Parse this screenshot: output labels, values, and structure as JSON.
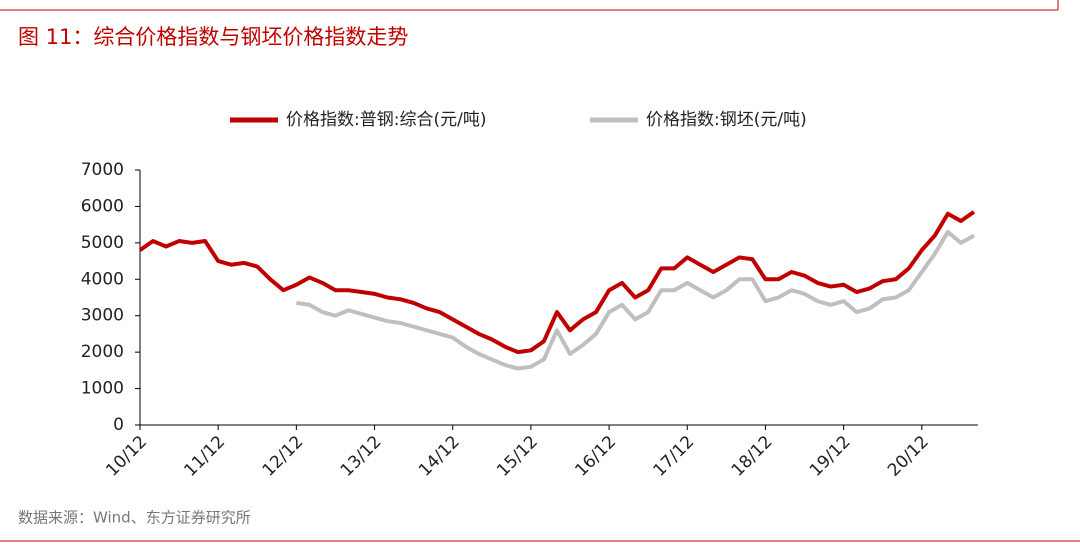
{
  "title": "图 11：综合价格指数与钢坯价格指数走势",
  "source": "数据来源：Wind、东方证券研究所",
  "chart_data": {
    "type": "line",
    "categories": [
      "10/12",
      null,
      null,
      null,
      null,
      null,
      "11/12",
      null,
      null,
      null,
      null,
      null,
      "12/12",
      null,
      null,
      null,
      null,
      null,
      "13/12",
      null,
      null,
      null,
      null,
      null,
      "14/12",
      null,
      null,
      null,
      null,
      null,
      "15/12",
      null,
      null,
      null,
      null,
      null,
      "16/12",
      null,
      null,
      null,
      null,
      null,
      "17/12",
      null,
      null,
      null,
      null,
      null,
      "18/12",
      null,
      null,
      null,
      null,
      null,
      "19/12",
      null,
      null,
      null,
      null,
      null,
      "20/12",
      null,
      null,
      null,
      null
    ],
    "series": [
      {
        "name": "价格指数:普钢:综合(元/吨)",
        "color": "#c00000",
        "values": [
          4800,
          5050,
          4900,
          5050,
          5000,
          5050,
          4500,
          4400,
          4450,
          4350,
          4000,
          3700,
          3850,
          4050,
          3900,
          3700,
          3700,
          3650,
          3600,
          3500,
          3450,
          3350,
          3200,
          3100,
          2900,
          2700,
          2500,
          2350,
          2150,
          2000,
          2050,
          2300,
          3100,
          2600,
          2900,
          3100,
          3700,
          3900,
          3500,
          3700,
          4300,
          4300,
          4600,
          4400,
          4200,
          4400,
          4600,
          4550,
          4000,
          4000,
          4200,
          4100,
          3900,
          3800,
          3850,
          3650,
          3750,
          3950,
          4000,
          4300,
          4800,
          5200,
          5800,
          5600,
          5850
        ]
      },
      {
        "name": "价格指数:钢坯(元/吨)",
        "color": "#bfbfbf",
        "values": [
          null,
          null,
          null,
          null,
          null,
          null,
          null,
          null,
          null,
          null,
          null,
          null,
          3350,
          3300,
          3100,
          3000,
          3150,
          3050,
          2950,
          2850,
          2800,
          2700,
          2600,
          2500,
          2400,
          2150,
          1950,
          1800,
          1650,
          1550,
          1600,
          1800,
          2600,
          1950,
          2200,
          2500,
          3100,
          3300,
          2900,
          3100,
          3700,
          3700,
          3900,
          3700,
          3500,
          3700,
          4000,
          4000,
          3400,
          3500,
          3700,
          3600,
          3400,
          3300,
          3400,
          3100,
          3200,
          3450,
          3500,
          3700,
          4200,
          4700,
          5300,
          5000,
          5200
        ]
      }
    ],
    "ylim": [
      0,
      7000
    ],
    "yticks": [
      0,
      1000,
      2000,
      3000,
      4000,
      5000,
      6000,
      7000
    ],
    "legend": "top"
  }
}
